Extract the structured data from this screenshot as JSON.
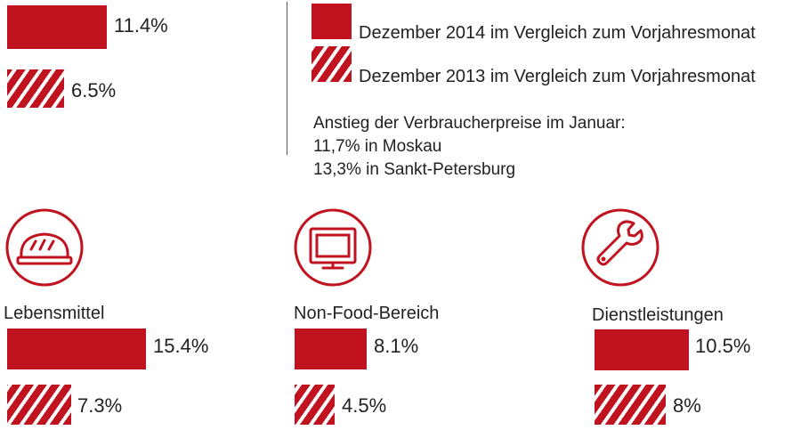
{
  "colors": {
    "accent": "#c0131f",
    "text": "#222222"
  },
  "legend": {
    "current": "Dezember 2014 im Vergleich zum Vorjahresmonat",
    "previous": "Dezember 2013 im Vergleich zum Vorjahresmonat"
  },
  "note": {
    "heading": "Anstieg der Verbraucherpreise im Januar:",
    "line1": "11,7% in Moskau",
    "line2": "13,3% in Sankt-Petersburg"
  },
  "chart_data": {
    "type": "bar",
    "categories": [
      "",
      "Lebensmittel",
      "Non-Food-Bereich",
      "Dienstleistungen"
    ],
    "series": [
      {
        "name": "Dezember 2014 im Vergleich zum Vorjahresmonat",
        "values": [
          11.4,
          15.4,
          8.1,
          10.5
        ],
        "labels": [
          "11.4%",
          "15.4%",
          "8.1%",
          "10.5%"
        ]
      },
      {
        "name": "Dezember 2013 im Vergleich zum Vorjahresmonat",
        "values": [
          6.5,
          7.3,
          4.5,
          8
        ],
        "labels": [
          "6.5%",
          "7.3%",
          "4.5%",
          "8%"
        ]
      }
    ],
    "unit": "%"
  },
  "icons": [
    "bread-icon",
    "tv-icon",
    "wrench-icon"
  ]
}
